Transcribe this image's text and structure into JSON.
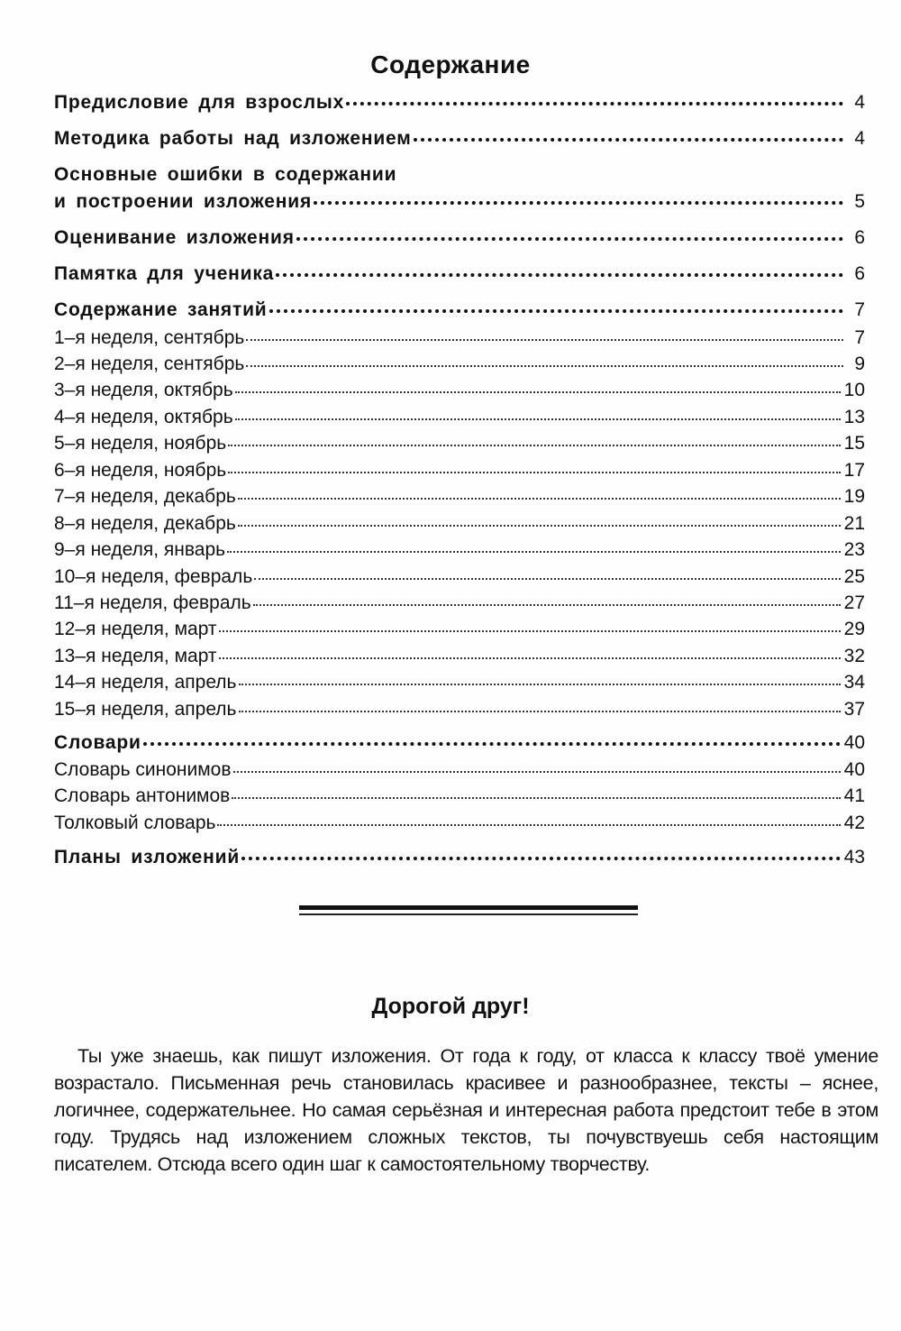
{
  "toc": {
    "title": "Содержание",
    "entries": [
      {
        "label": "Предисловие для взрослых",
        "page": "4",
        "bold": true
      },
      {
        "label": "Методика работы над изложением",
        "page": "4",
        "bold": true
      },
      {
        "label_line1": "Основные ошибки в содержании",
        "label": "и построении изложения",
        "page": "5",
        "bold": true
      },
      {
        "label": "Оценивание изложения",
        "page": "6",
        "bold": true
      },
      {
        "label": "Памятка для ученика",
        "page": "6",
        "bold": true
      },
      {
        "label": "Содержание занятий",
        "page": "7",
        "bold": true
      },
      {
        "label": "1–я неделя, сентябрь",
        "page": "7",
        "bold": false
      },
      {
        "label": "2–я неделя, сентябрь",
        "page": "9",
        "bold": false
      },
      {
        "label": "3–я неделя, октябрь",
        "page": "10",
        "bold": false
      },
      {
        "label": "4–я неделя, октябрь",
        "page": "13",
        "bold": false
      },
      {
        "label": "5–я неделя, ноябрь",
        "page": "15",
        "bold": false
      },
      {
        "label": "6–я неделя, ноябрь",
        "page": "17",
        "bold": false
      },
      {
        "label": "7–я неделя, декабрь",
        "page": "19",
        "bold": false
      },
      {
        "label": "8–я неделя, декабрь",
        "page": "21",
        "bold": false
      },
      {
        "label": "9–я неделя, январь",
        "page": "23",
        "bold": false
      },
      {
        "label": "10–я неделя, февраль",
        "page": "25",
        "bold": false
      },
      {
        "label": "11–я неделя, февраль",
        "page": "27",
        "bold": false
      },
      {
        "label": "12–я неделя, март",
        "page": "29",
        "bold": false
      },
      {
        "label": "13–я неделя, март",
        "page": "32",
        "bold": false
      },
      {
        "label": "14–я неделя, апрель",
        "page": "34",
        "bold": false
      },
      {
        "label": "15–я неделя, апрель",
        "page": "37",
        "bold": false
      },
      {
        "label": "Словари",
        "page": "40",
        "bold": true
      },
      {
        "label": "Словарь синонимов",
        "page": "40",
        "bold": false
      },
      {
        "label": "Словарь антонимов",
        "page": "41",
        "bold": false
      },
      {
        "label": "Толковый словарь",
        "page": "42",
        "bold": false
      },
      {
        "label": "Планы изложений",
        "page": "43",
        "bold": true
      }
    ]
  },
  "letter": {
    "heading": "Дорогой друг!",
    "text": "Ты уже знаешь, как пишут изложения. От года к году, от класса к классу твоё умение возрастало. Письменная речь становилась красивее и разнообразнее, тексты – яснее, логичнее, содержательнее. Но самая серьёзная и интересная работа предстоит тебе в этом году. Трудясь над изложением сложных текстов, ты почувствуешь себя настоящим писателем. Отсюда всего один шаг к самостоятельному творчеству."
  }
}
